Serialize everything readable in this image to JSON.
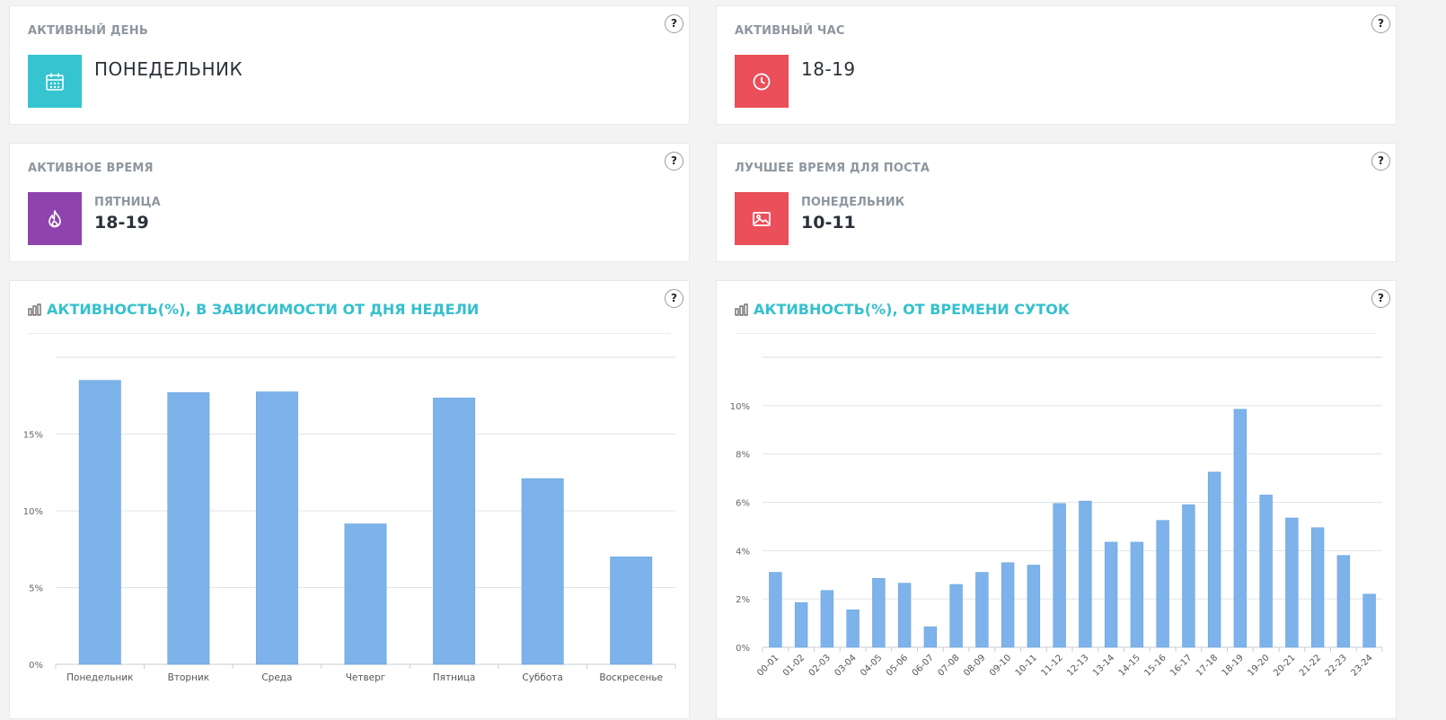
{
  "help_label": "?",
  "cards": {
    "active_day": {
      "title": "АКТИВНЫЙ ДЕНЬ",
      "value": "ПОНЕДЕЛЬНИК",
      "icon": "calendar-icon",
      "color": "#35c4d0"
    },
    "active_hour": {
      "title": "АКТИВНЫЙ ЧАС",
      "value": "18-19",
      "icon": "clock-icon",
      "color": "#ea4f5a"
    },
    "active_time": {
      "title": "АКТИВНОЕ ВРЕМЯ",
      "sub": "ПЯТНИЦА",
      "value": "18-19",
      "icon": "fire-icon",
      "color": "#8e43ad"
    },
    "best_post_time": {
      "title": "ЛУЧШЕЕ ВРЕМЯ ДЛЯ ПОСТА",
      "sub": "ПОНЕДЕЛЬНИК",
      "value": "10-11",
      "icon": "image-icon",
      "color": "#ea4f5a"
    }
  },
  "chart_data": [
    {
      "type": "bar",
      "title": "АКТИВНОСТЬ(%), В ЗАВИСИМОСТИ ОТ ДНЯ НЕДЕЛИ",
      "categories": [
        "Понедельник",
        "Вторник",
        "Среда",
        "Четверг",
        "Пятница",
        "Суббота",
        "Воскресенье"
      ],
      "values": [
        18.5,
        17.7,
        17.75,
        9.15,
        17.35,
        12.1,
        7.0
      ],
      "yticks": [
        "0%",
        "5%",
        "10%",
        "15%"
      ],
      "ylim": [
        0,
        20
      ],
      "grid": true,
      "color": "#7db3ea"
    },
    {
      "type": "bar",
      "title": "АКТИВНОСТЬ(%), ОТ ВРЕМЕНИ СУТОК",
      "categories": [
        "00-01",
        "01-02",
        "02-03",
        "03-04",
        "04-05",
        "05-06",
        "06-07",
        "07-08",
        "08-09",
        "09-10",
        "10-11",
        "11-12",
        "12-13",
        "13-14",
        "14-15",
        "15-16",
        "16-17",
        "17-18",
        "18-19",
        "19-20",
        "20-21",
        "21-22",
        "22-23",
        "23-24"
      ],
      "values": [
        3.1,
        1.85,
        2.35,
        1.55,
        2.85,
        2.65,
        0.85,
        2.6,
        3.1,
        3.5,
        3.4,
        5.95,
        6.05,
        4.35,
        4.35,
        5.25,
        5.9,
        7.25,
        9.85,
        6.3,
        5.35,
        4.95,
        3.8,
        2.2
      ],
      "yticks": [
        "0%",
        "2%",
        "4%",
        "6%",
        "8%",
        "10%"
      ],
      "ylim": [
        0,
        12
      ],
      "grid": true,
      "color": "#7db3ea"
    }
  ]
}
